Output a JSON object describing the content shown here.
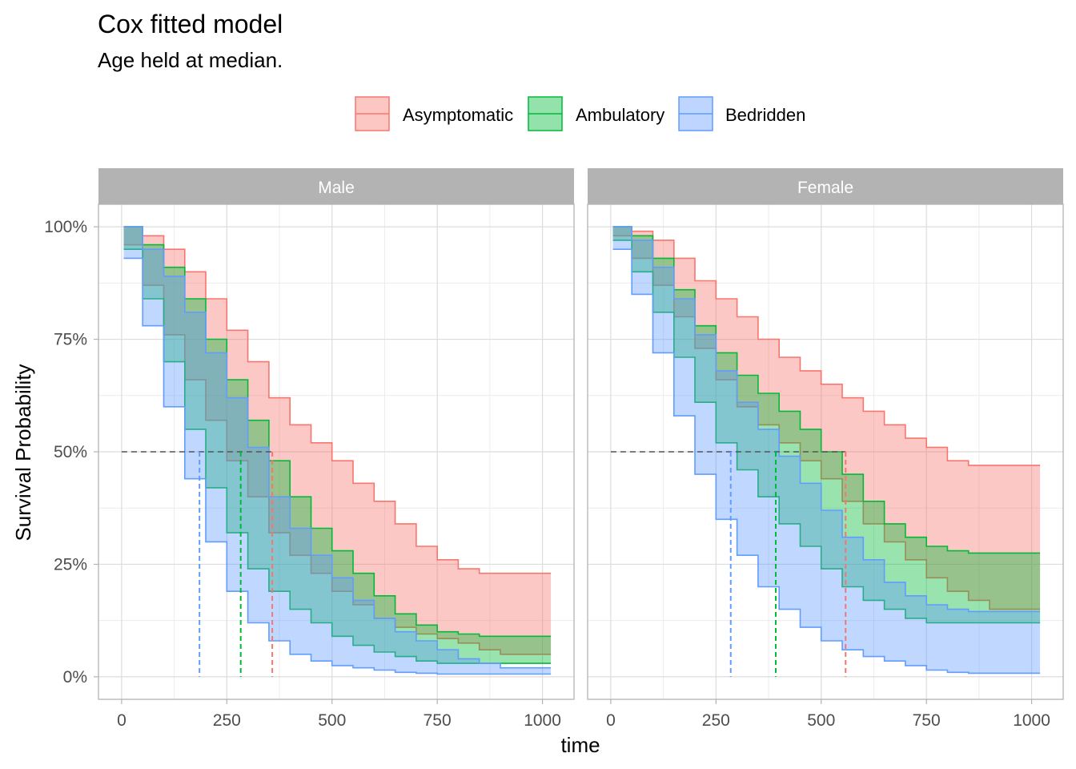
{
  "title": "Cox fitted model",
  "subtitle": "Age held at median.",
  "colors": {
    "Asymptomatic": "#f8766d",
    "Ambulatory": "#00ba38",
    "Bedridden": "#619cff"
  },
  "chart_data": {
    "type": "line",
    "subtype": "survival step curves with confidence bands, faceted",
    "xlabel": "time",
    "ylabel": "Survival Probability",
    "xlim": [
      0,
      1000
    ],
    "ylim": [
      0,
      1
    ],
    "x_ticks": [
      0,
      250,
      500,
      750,
      1000
    ],
    "x_tick_labels": [
      "0",
      "250",
      "500",
      "750",
      "1000"
    ],
    "y_ticks": [
      0,
      0.25,
      0.5,
      0.75,
      1.0
    ],
    "y_tick_labels": [
      "0%",
      "25%",
      "50%",
      "75%",
      "100%"
    ],
    "grid": true,
    "legend_position": "top",
    "legend": [
      "Asymptomatic",
      "Ambulatory",
      "Bedridden"
    ],
    "reference_level": 0.5,
    "facets": [
      {
        "label": "Male",
        "series": [
          {
            "name": "Asymptomatic",
            "median_time": 358,
            "x": [
              5,
              50,
              100,
              150,
              200,
              250,
              300,
              350,
              400,
              450,
              500,
              550,
              600,
              650,
              700,
              750,
              800,
              850,
              900,
              950,
              1020
            ],
            "lower": [
              0.96,
              0.87,
              0.76,
              0.66,
              0.57,
              0.48,
              0.4,
              0.32,
              0.27,
              0.23,
              0.19,
              0.16,
              0.13,
              0.11,
              0.095,
              0.085,
              0.075,
              0.06,
              0.05,
              0.05,
              0.05
            ],
            "upper": [
              1.0,
              0.98,
              0.95,
              0.9,
              0.84,
              0.77,
              0.7,
              0.62,
              0.56,
              0.52,
              0.48,
              0.43,
              0.39,
              0.34,
              0.29,
              0.26,
              0.24,
              0.23,
              0.23,
              0.23,
              0.23
            ]
          },
          {
            "name": "Ambulatory",
            "median_time": 283,
            "x": [
              5,
              50,
              100,
              150,
              200,
              250,
              300,
              350,
              400,
              450,
              500,
              550,
              600,
              650,
              700,
              750,
              800,
              850,
              900,
              950,
              1020
            ],
            "lower": [
              0.95,
              0.84,
              0.7,
              0.55,
              0.42,
              0.32,
              0.24,
              0.19,
              0.15,
              0.12,
              0.09,
              0.07,
              0.055,
              0.045,
              0.035,
              0.03,
              0.03,
              0.03,
              0.03,
              0.03,
              0.03
            ],
            "upper": [
              1.0,
              0.96,
              0.91,
              0.84,
              0.75,
              0.66,
              0.57,
              0.48,
              0.4,
              0.33,
              0.28,
              0.23,
              0.18,
              0.14,
              0.115,
              0.1,
              0.095,
              0.09,
              0.09,
              0.09,
              0.09
            ]
          },
          {
            "name": "Bedridden",
            "median_time": 185,
            "x": [
              5,
              50,
              100,
              150,
              200,
              250,
              300,
              350,
              400,
              450,
              500,
              550,
              600,
              650,
              700,
              750,
              800,
              850,
              900,
              950,
              1020
            ],
            "lower": [
              0.93,
              0.78,
              0.6,
              0.44,
              0.3,
              0.19,
              0.12,
              0.08,
              0.05,
              0.035,
              0.025,
              0.02,
              0.015,
              0.01,
              0.008,
              0.006,
              0.006,
              0.006,
              0.006,
              0.006,
              0.006
            ],
            "upper": [
              1.0,
              0.95,
              0.89,
              0.81,
              0.72,
              0.62,
              0.51,
              0.4,
              0.33,
              0.27,
              0.22,
              0.17,
              0.13,
              0.1,
              0.08,
              0.06,
              0.04,
              0.03,
              0.02,
              0.02,
              0.02
            ]
          }
        ]
      },
      {
        "label": "Female",
        "series": [
          {
            "name": "Asymptomatic",
            "median_time": 558,
            "x": [
              5,
              50,
              100,
              150,
              200,
              250,
              300,
              350,
              400,
              450,
              500,
              550,
              600,
              650,
              700,
              750,
              800,
              850,
              900,
              950,
              1020
            ],
            "lower": [
              0.98,
              0.93,
              0.87,
              0.8,
              0.73,
              0.66,
              0.6,
              0.56,
              0.52,
              0.48,
              0.44,
              0.39,
              0.34,
              0.3,
              0.26,
              0.22,
              0.19,
              0.17,
              0.15,
              0.15,
              0.15
            ],
            "upper": [
              1.0,
              0.99,
              0.97,
              0.93,
              0.88,
              0.84,
              0.8,
              0.75,
              0.71,
              0.68,
              0.65,
              0.62,
              0.59,
              0.56,
              0.53,
              0.51,
              0.48,
              0.47,
              0.47,
              0.47,
              0.47
            ]
          },
          {
            "name": "Ambulatory",
            "median_time": 392,
            "x": [
              5,
              50,
              100,
              150,
              200,
              250,
              300,
              350,
              400,
              450,
              500,
              550,
              600,
              650,
              700,
              750,
              800,
              850,
              900,
              950,
              1020
            ],
            "lower": [
              0.97,
              0.9,
              0.81,
              0.71,
              0.61,
              0.52,
              0.46,
              0.4,
              0.34,
              0.29,
              0.24,
              0.2,
              0.17,
              0.15,
              0.13,
              0.12,
              0.12,
              0.12,
              0.12,
              0.12,
              0.12
            ],
            "upper": [
              1.0,
              0.98,
              0.93,
              0.86,
              0.78,
              0.72,
              0.67,
              0.63,
              0.59,
              0.55,
              0.5,
              0.45,
              0.39,
              0.34,
              0.31,
              0.29,
              0.28,
              0.275,
              0.275,
              0.275,
              0.275
            ]
          },
          {
            "name": "Bedridden",
            "median_time": 285,
            "x": [
              5,
              50,
              100,
              150,
              200,
              250,
              300,
              350,
              400,
              450,
              500,
              550,
              600,
              650,
              700,
              750,
              800,
              850,
              900,
              950,
              1020
            ],
            "lower": [
              0.95,
              0.85,
              0.72,
              0.58,
              0.45,
              0.35,
              0.27,
              0.2,
              0.15,
              0.11,
              0.08,
              0.06,
              0.045,
              0.035,
              0.025,
              0.015,
              0.01,
              0.008,
              0.008,
              0.008,
              0.008
            ],
            "upper": [
              1.0,
              0.97,
              0.91,
              0.84,
              0.76,
              0.68,
              0.61,
              0.55,
              0.49,
              0.43,
              0.37,
              0.31,
              0.26,
              0.21,
              0.18,
              0.16,
              0.15,
              0.145,
              0.145,
              0.145,
              0.145
            ]
          }
        ]
      }
    ]
  }
}
